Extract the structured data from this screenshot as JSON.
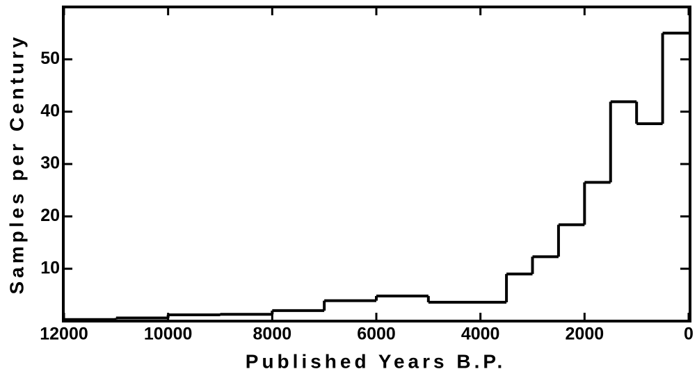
{
  "chart_data": {
    "type": "histogram",
    "x_label": "Published Years B.P.",
    "y_label": "Samples per Century",
    "bins": [
      12000,
      11000,
      10000,
      9000,
      8000,
      7000,
      6000,
      5000,
      3500,
      3000,
      2500,
      2000,
      1500,
      1000,
      500,
      0
    ],
    "values": [
      0.3,
      0.6,
      1.2,
      1.3,
      2,
      3.9,
      4.8,
      3.6,
      9,
      12.3,
      18.4,
      26.5,
      41.9,
      37.7,
      55
    ],
    "color": "#000000",
    "xlim": [
      12000,
      0
    ],
    "xticks": [
      12000,
      10000,
      8000,
      6000,
      4000,
      2000,
      0
    ],
    "ylim": [
      0,
      60
    ],
    "yticks": [
      10,
      20,
      30,
      40,
      50
    ]
  }
}
